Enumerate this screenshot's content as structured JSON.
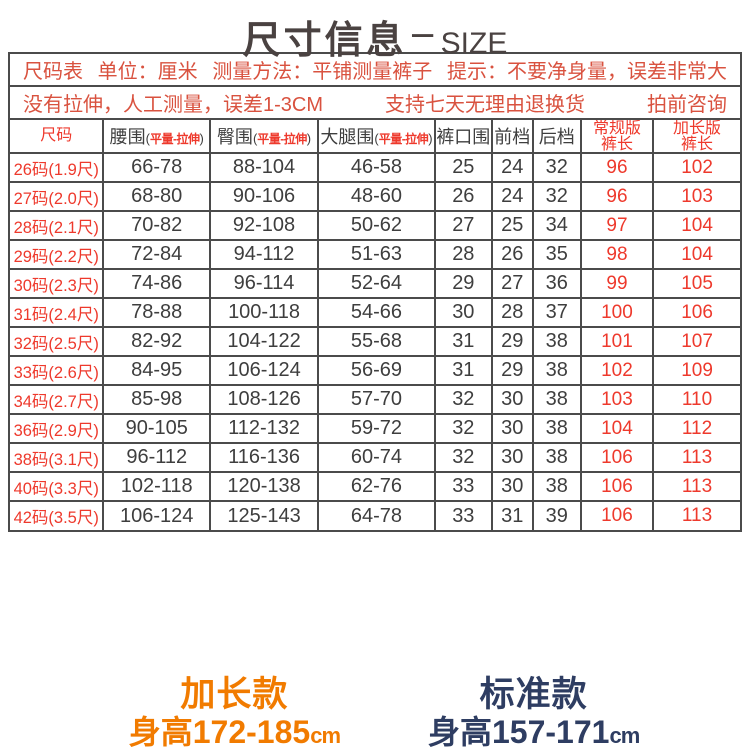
{
  "title": {
    "zh": "尺寸信息",
    "dash": "－",
    "en": "SIZE"
  },
  "banner": {
    "row1": [
      "尺码表",
      "单位：厘米",
      "测量方法：平铺测量裤子",
      "提示：不要净身量，误差非常大"
    ],
    "row2": [
      "没有拉伸，人工测量，误差1-3CM",
      "支持七天无理由退换货",
      "拍前咨询"
    ]
  },
  "chart_data": {
    "type": "table",
    "title": "尺寸信息－SIZE",
    "unit": "厘米",
    "columns": [
      {
        "label": "尺码",
        "red": true
      },
      {
        "label": "腰围",
        "sub": "平量-拉伸"
      },
      {
        "label": "臀围",
        "sub": "平量-拉伸"
      },
      {
        "label": "大腿围",
        "sub": "平量-拉伸"
      },
      {
        "label": "裤口围"
      },
      {
        "label": "前档"
      },
      {
        "label": "后档"
      },
      {
        "label": "常规版",
        "label2": "裤长",
        "red": true
      },
      {
        "label": "加长版",
        "label2": "裤长",
        "red": true
      }
    ],
    "red_columns": [
      0,
      7,
      8
    ],
    "rows": [
      [
        "26码(1.9尺)",
        "66-78",
        "88-104",
        "46-58",
        "25",
        "24",
        "32",
        "96",
        "102"
      ],
      [
        "27码(2.0尺)",
        "68-80",
        "90-106",
        "48-60",
        "26",
        "24",
        "32",
        "96",
        "103"
      ],
      [
        "28码(2.1尺)",
        "70-82",
        "92-108",
        "50-62",
        "27",
        "25",
        "34",
        "97",
        "104"
      ],
      [
        "29码(2.2尺)",
        "72-84",
        "94-112",
        "51-63",
        "28",
        "26",
        "35",
        "98",
        "104"
      ],
      [
        "30码(2.3尺)",
        "74-86",
        "96-114",
        "52-64",
        "29",
        "27",
        "36",
        "99",
        "105"
      ],
      [
        "31码(2.4尺)",
        "78-88",
        "100-118",
        "54-66",
        "30",
        "28",
        "37",
        "100",
        "106"
      ],
      [
        "32码(2.5尺)",
        "82-92",
        "104-122",
        "55-68",
        "31",
        "29",
        "38",
        "101",
        "107"
      ],
      [
        "33码(2.6尺)",
        "84-95",
        "106-124",
        "56-69",
        "31",
        "29",
        "38",
        "102",
        "109"
      ],
      [
        "34码(2.7尺)",
        "85-98",
        "108-126",
        "57-70",
        "32",
        "30",
        "38",
        "103",
        "110"
      ],
      [
        "36码(2.9尺)",
        "90-105",
        "112-132",
        "59-72",
        "32",
        "30",
        "38",
        "104",
        "112"
      ],
      [
        "38码(3.1尺)",
        "96-112",
        "116-136",
        "60-74",
        "32",
        "30",
        "38",
        "106",
        "113"
      ],
      [
        "40码(3.3尺)",
        "102-118",
        "120-138",
        "62-76",
        "33",
        "30",
        "38",
        "106",
        "113"
      ],
      [
        "42码(3.5尺)",
        "106-124",
        "125-143",
        "64-78",
        "33",
        "31",
        "39",
        "106",
        "113"
      ]
    ]
  },
  "footer": {
    "left": {
      "title": "加长款",
      "height": "身高172-185",
      "unit": "cm"
    },
    "right": {
      "title": "标准款",
      "height": "身高157-171",
      "unit": "cm"
    }
  },
  "colors": {
    "border": "#4b4b4b",
    "banner-red": "#d9523f",
    "red": "#ee392c",
    "dark": "#3e3e3e",
    "title": "#4a4241",
    "orange": "#f17b00",
    "navy": "#2e3d62"
  }
}
